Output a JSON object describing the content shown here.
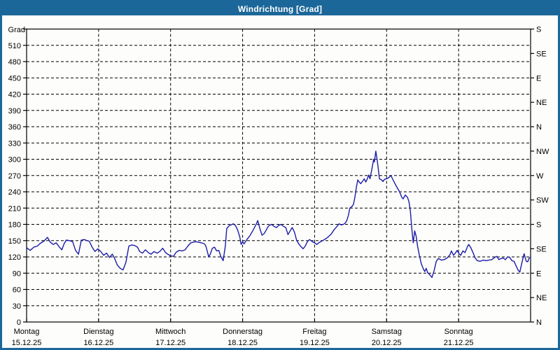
{
  "window": {
    "title": "Windrichtung [Grad]"
  },
  "chart_data": {
    "type": "line",
    "title": "Windrichtung [Grad]",
    "ylabel": "Grad",
    "xlabel": "",
    "ylim": [
      0,
      540
    ],
    "x_range_days": [
      0,
      7
    ],
    "grid": "dashed",
    "legend": "none",
    "y_ticks": [
      0,
      30,
      60,
      90,
      120,
      150,
      180,
      210,
      240,
      270,
      300,
      330,
      360,
      390,
      420,
      450,
      480,
      510
    ],
    "right_axis_step_deg": 45,
    "right_axis_labels_bottom_to_top": [
      "N",
      "NE",
      "E",
      "SE",
      "S",
      "SW",
      "W",
      "NW",
      "N",
      "NE",
      "E",
      "SE",
      "S"
    ],
    "x_axis_days": [
      {
        "name": "Montag",
        "date": "15.12.25"
      },
      {
        "name": "Dienstag",
        "date": "16.12.25"
      },
      {
        "name": "Mittwoch",
        "date": "17.12.25"
      },
      {
        "name": "Donnerstag",
        "date": "18.12.25"
      },
      {
        "name": "Freitag",
        "date": "19.12.25"
      },
      {
        "name": "Samstag",
        "date": "20.12.25"
      },
      {
        "name": "Sonntag",
        "date": "21.12.25"
      }
    ],
    "colors": {
      "line": "#1c1ca8",
      "frame": "#000000",
      "grid": "#000000",
      "titlebar": "#1c6799",
      "title_text": "#ffffff",
      "background": "#fdfdfb"
    },
    "series": [
      {
        "name": "Windrichtung",
        "unit": "Grad",
        "x_unit": "days since Montag 15.12.25 00:00",
        "points": [
          [
            0.0,
            137
          ],
          [
            0.05,
            132
          ],
          [
            0.1,
            138
          ],
          [
            0.15,
            140
          ],
          [
            0.19,
            145
          ],
          [
            0.24,
            149
          ],
          [
            0.29,
            156
          ],
          [
            0.33,
            147
          ],
          [
            0.37,
            143
          ],
          [
            0.41,
            146
          ],
          [
            0.45,
            139
          ],
          [
            0.49,
            133
          ],
          [
            0.52,
            144
          ],
          [
            0.55,
            151
          ],
          [
            0.6,
            150
          ],
          [
            0.64,
            148
          ],
          [
            0.68,
            132
          ],
          [
            0.72,
            125
          ],
          [
            0.76,
            151
          ],
          [
            0.8,
            152
          ],
          [
            0.84,
            150
          ],
          [
            0.87,
            149
          ],
          [
            0.91,
            138
          ],
          [
            0.95,
            130
          ],
          [
            0.99,
            135
          ],
          [
            1.03,
            130
          ],
          [
            1.07,
            123
          ],
          [
            1.11,
            127
          ],
          [
            1.15,
            119
          ],
          [
            1.19,
            125
          ],
          [
            1.22,
            118
          ],
          [
            1.26,
            105
          ],
          [
            1.3,
            99
          ],
          [
            1.34,
            96
          ],
          [
            1.38,
            110
          ],
          [
            1.42,
            140
          ],
          [
            1.46,
            142
          ],
          [
            1.5,
            141
          ],
          [
            1.54,
            138
          ],
          [
            1.57,
            130
          ],
          [
            1.61,
            127
          ],
          [
            1.65,
            133
          ],
          [
            1.69,
            128
          ],
          [
            1.73,
            125
          ],
          [
            1.77,
            130
          ],
          [
            1.81,
            127
          ],
          [
            1.85,
            130
          ],
          [
            1.89,
            136
          ],
          [
            1.93,
            128
          ],
          [
            1.96,
            125
          ],
          [
            2.0,
            122
          ],
          [
            2.04,
            121
          ],
          [
            2.08,
            129
          ],
          [
            2.12,
            132
          ],
          [
            2.16,
            131
          ],
          [
            2.2,
            133
          ],
          [
            2.24,
            140
          ],
          [
            2.28,
            146
          ],
          [
            2.31,
            147
          ],
          [
            2.35,
            148
          ],
          [
            2.39,
            147
          ],
          [
            2.43,
            146
          ],
          [
            2.47,
            144
          ],
          [
            2.49,
            140
          ],
          [
            2.53,
            120
          ],
          [
            2.55,
            125
          ],
          [
            2.58,
            136
          ],
          [
            2.61,
            138
          ],
          [
            2.64,
            131
          ],
          [
            2.67,
            132
          ],
          [
            2.7,
            120
          ],
          [
            2.73,
            113
          ],
          [
            2.76,
            140
          ],
          [
            2.78,
            172
          ],
          [
            2.81,
            177
          ],
          [
            2.84,
            179
          ],
          [
            2.87,
            181
          ],
          [
            2.9,
            178
          ],
          [
            2.93,
            170
          ],
          [
            2.96,
            157
          ],
          [
            2.98,
            143
          ],
          [
            3.0,
            148
          ],
          [
            3.02,
            144
          ],
          [
            3.06,
            152
          ],
          [
            3.1,
            159
          ],
          [
            3.14,
            168
          ],
          [
            3.18,
            178
          ],
          [
            3.21,
            187
          ],
          [
            3.24,
            172
          ],
          [
            3.27,
            160
          ],
          [
            3.3,
            163
          ],
          [
            3.33,
            170
          ],
          [
            3.36,
            177
          ],
          [
            3.4,
            180
          ],
          [
            3.44,
            176
          ],
          [
            3.47,
            174
          ],
          [
            3.5,
            178
          ],
          [
            3.53,
            180
          ],
          [
            3.56,
            177
          ],
          [
            3.6,
            174
          ],
          [
            3.63,
            161
          ],
          [
            3.66,
            168
          ],
          [
            3.69,
            174
          ],
          [
            3.72,
            166
          ],
          [
            3.75,
            151
          ],
          [
            3.78,
            144
          ],
          [
            3.81,
            139
          ],
          [
            3.84,
            135
          ],
          [
            3.87,
            140
          ],
          [
            3.9,
            148
          ],
          [
            3.93,
            152
          ],
          [
            3.97,
            148
          ],
          [
            4.0,
            146
          ],
          [
            4.03,
            143
          ],
          [
            4.07,
            147
          ],
          [
            4.11,
            150
          ],
          [
            4.15,
            153
          ],
          [
            4.19,
            157
          ],
          [
            4.23,
            162
          ],
          [
            4.27,
            170
          ],
          [
            4.31,
            176
          ],
          [
            4.34,
            181
          ],
          [
            4.37,
            179
          ],
          [
            4.4,
            180
          ],
          [
            4.43,
            183
          ],
          [
            4.45,
            188
          ],
          [
            4.47,
            197
          ],
          [
            4.49,
            210
          ],
          [
            4.52,
            213
          ],
          [
            4.54,
            217
          ],
          [
            4.56,
            230
          ],
          [
            4.58,
            248
          ],
          [
            4.6,
            262
          ],
          [
            4.62,
            258
          ],
          [
            4.64,
            255
          ],
          [
            4.67,
            260
          ],
          [
            4.69,
            264
          ],
          [
            4.71,
            258
          ],
          [
            4.73,
            263
          ],
          [
            4.75,
            271
          ],
          [
            4.77,
            264
          ],
          [
            4.8,
            285
          ],
          [
            4.82,
            300
          ],
          [
            4.83,
            295
          ],
          [
            4.85,
            315
          ],
          [
            4.87,
            298
          ],
          [
            4.89,
            276
          ],
          [
            4.9,
            264
          ],
          [
            4.93,
            262
          ],
          [
            4.95,
            259
          ],
          [
            4.97,
            263
          ],
          [
            5.0,
            264
          ],
          [
            5.03,
            266
          ],
          [
            5.06,
            270
          ],
          [
            5.09,
            262
          ],
          [
            5.12,
            254
          ],
          [
            5.15,
            247
          ],
          [
            5.18,
            240
          ],
          [
            5.21,
            230
          ],
          [
            5.23,
            227
          ],
          [
            5.26,
            234
          ],
          [
            5.29,
            230
          ],
          [
            5.31,
            222
          ],
          [
            5.33,
            205
          ],
          [
            5.35,
            172
          ],
          [
            5.37,
            146
          ],
          [
            5.39,
            168
          ],
          [
            5.41,
            158
          ],
          [
            5.43,
            140
          ],
          [
            5.45,
            126
          ],
          [
            5.48,
            108
          ],
          [
            5.51,
            98
          ],
          [
            5.53,
            93
          ],
          [
            5.55,
            99
          ],
          [
            5.57,
            91
          ],
          [
            5.6,
            87
          ],
          [
            5.63,
            82
          ],
          [
            5.66,
            95
          ],
          [
            5.69,
            112
          ],
          [
            5.72,
            117
          ],
          [
            5.76,
            114
          ],
          [
            5.8,
            115
          ],
          [
            5.84,
            118
          ],
          [
            5.88,
            124
          ],
          [
            5.9,
            131
          ],
          [
            5.93,
            123
          ],
          [
            5.96,
            128
          ],
          [
            5.98,
            132
          ],
          [
            6.0,
            127
          ],
          [
            6.03,
            123
          ],
          [
            6.06,
            131
          ],
          [
            6.09,
            128
          ],
          [
            6.12,
            138
          ],
          [
            6.14,
            143
          ],
          [
            6.17,
            137
          ],
          [
            6.2,
            128
          ],
          [
            6.23,
            118
          ],
          [
            6.26,
            113
          ],
          [
            6.3,
            112
          ],
          [
            6.34,
            114
          ],
          [
            6.38,
            113
          ],
          [
            6.42,
            114
          ],
          [
            6.46,
            115
          ],
          [
            6.5,
            119
          ],
          [
            6.53,
            121
          ],
          [
            6.56,
            115
          ],
          [
            6.59,
            117
          ],
          [
            6.62,
            118
          ],
          [
            6.65,
            115
          ],
          [
            6.68,
            120
          ],
          [
            6.71,
            119
          ],
          [
            6.74,
            113
          ],
          [
            6.77,
            112
          ],
          [
            6.8,
            103
          ],
          [
            6.83,
            95
          ],
          [
            6.85,
            92
          ],
          [
            6.88,
            110
          ],
          [
            6.91,
            126
          ],
          [
            6.94,
            112
          ],
          [
            6.96,
            111
          ],
          [
            6.98,
            118
          ],
          [
            7.0,
            119
          ]
        ]
      }
    ]
  }
}
